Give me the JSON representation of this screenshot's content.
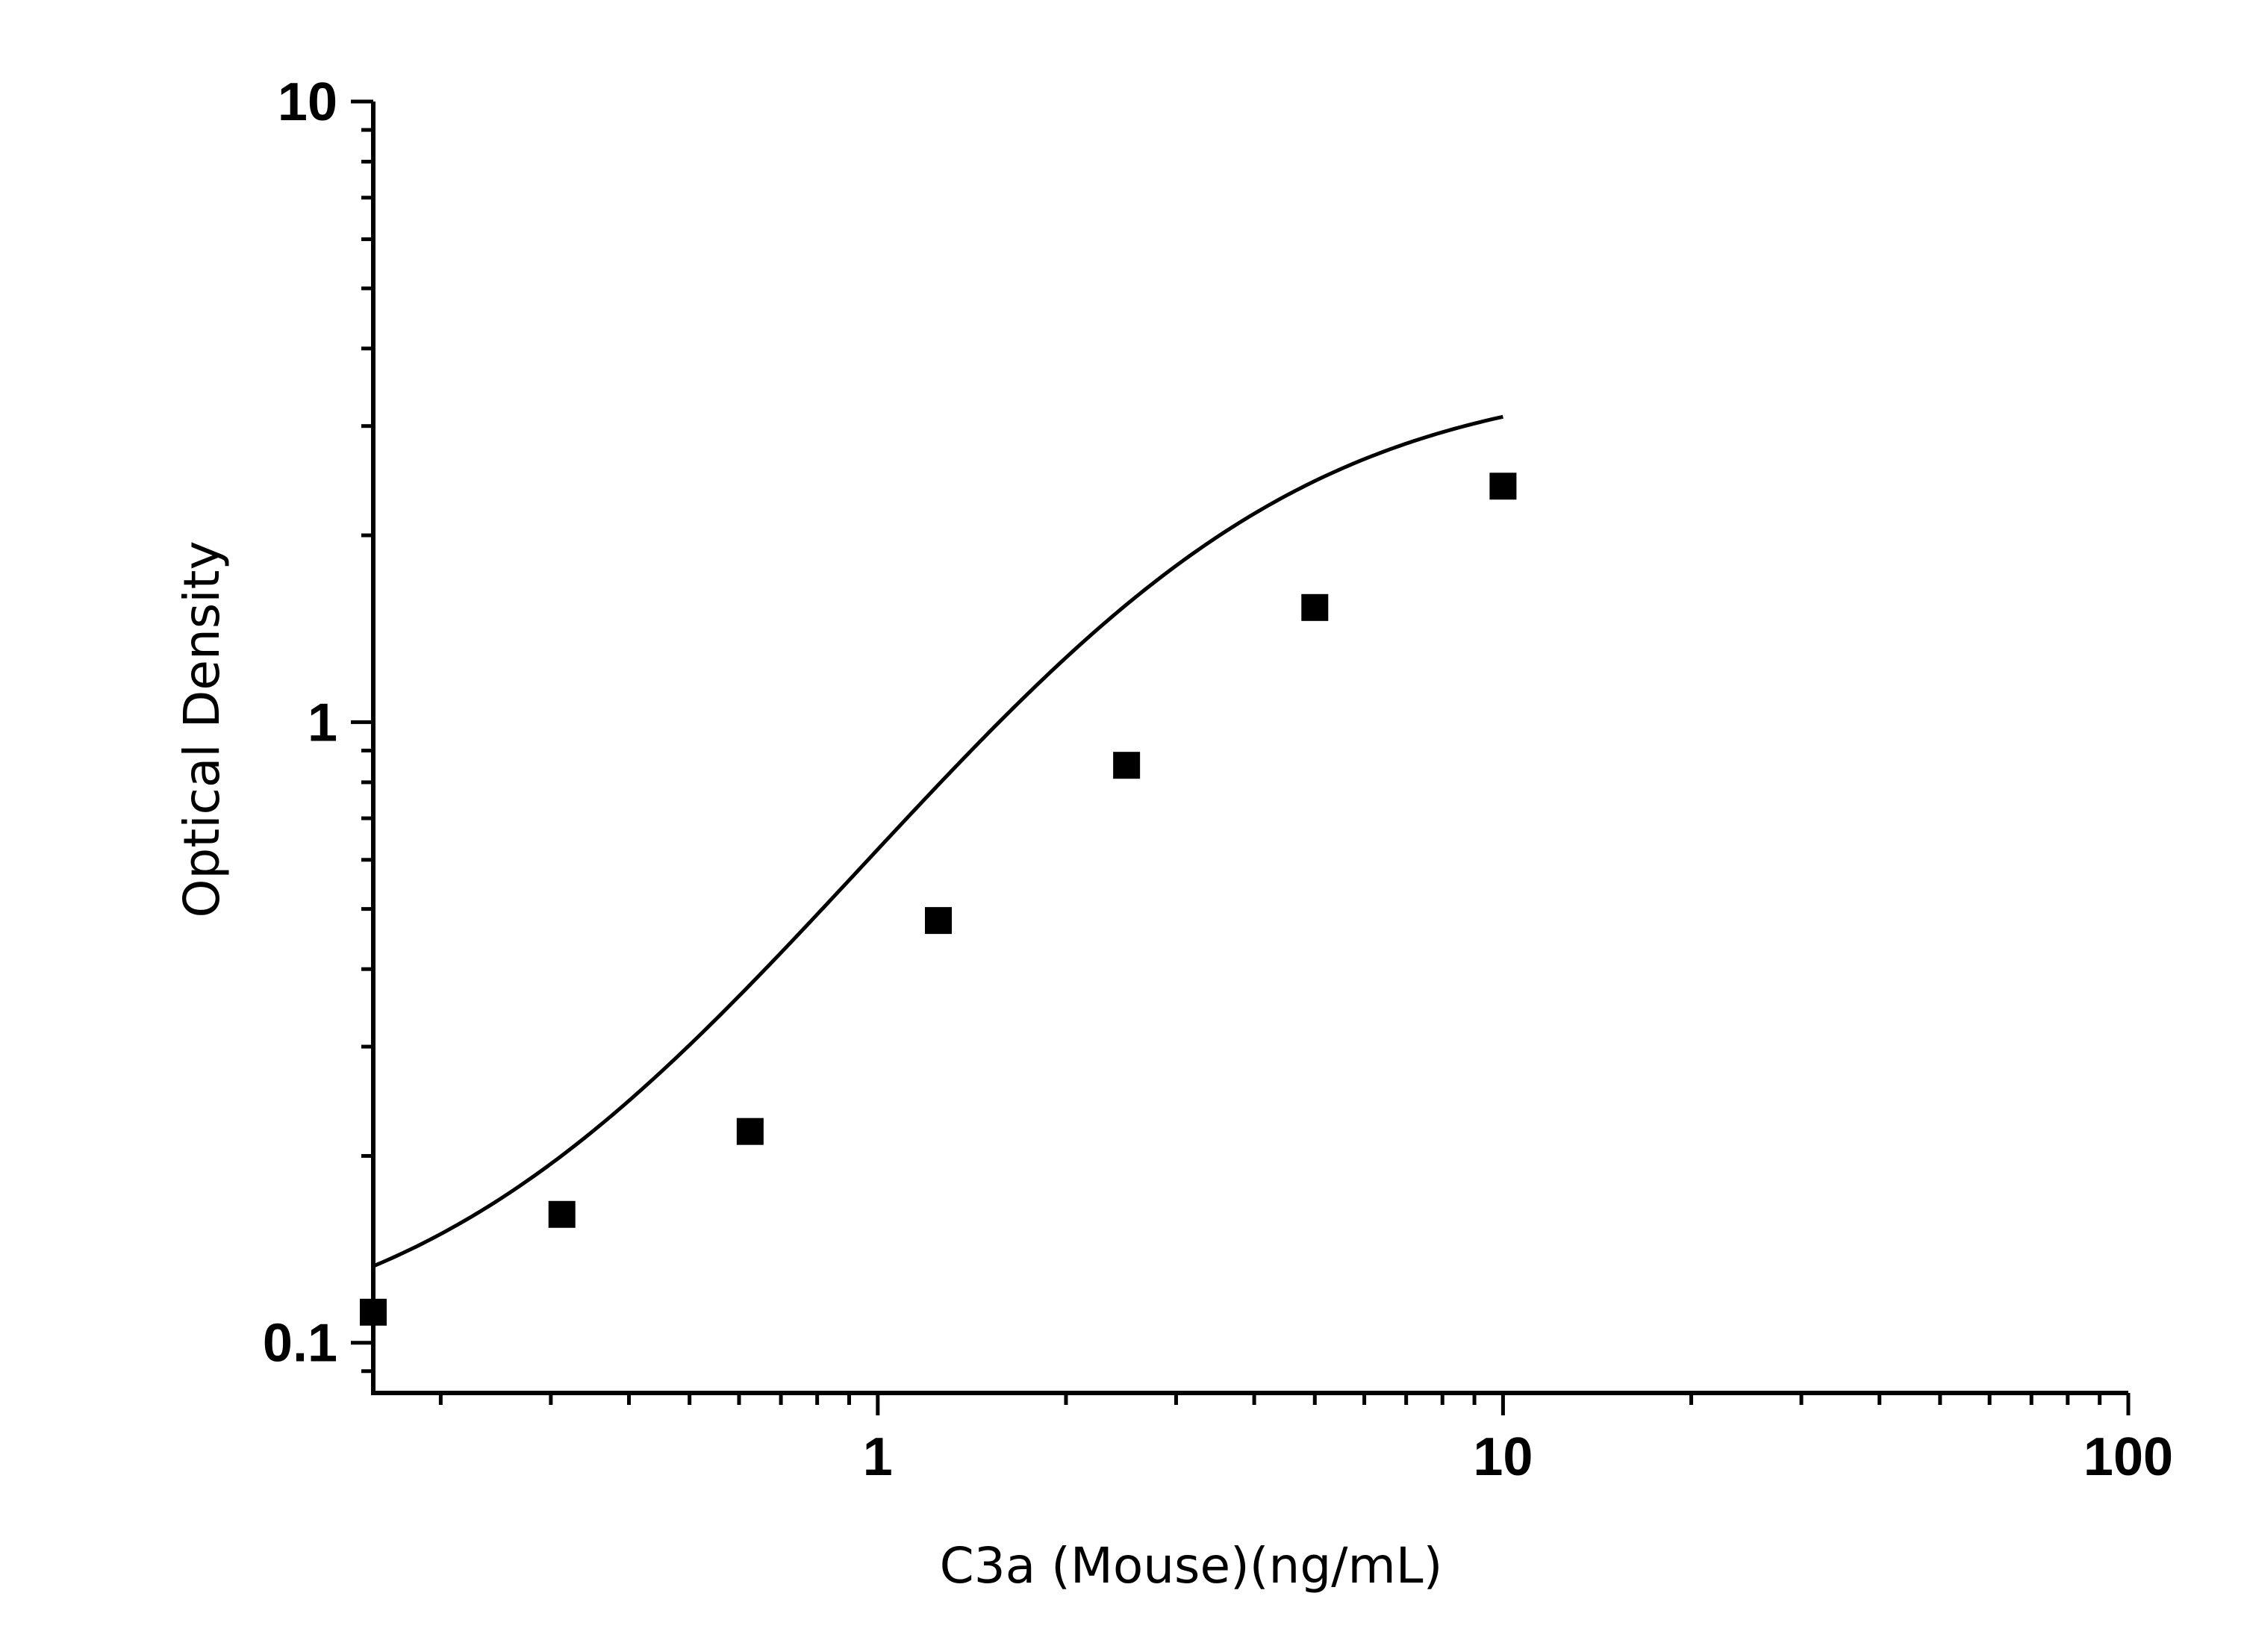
{
  "chart_data": {
    "type": "scatter",
    "title": "",
    "xlabel": "C3a (Mouse)(ng/mL)",
    "ylabel": "Optical Density",
    "x_scale": "log",
    "y_scale": "log",
    "xlim": [
      0.156,
      100
    ],
    "ylim": [
      0.083,
      10
    ],
    "x_ticks": [
      {
        "value": 1,
        "label": "1"
      },
      {
        "value": 10,
        "label": "10"
      },
      {
        "value": 100,
        "label": "100"
      }
    ],
    "y_ticks": [
      {
        "value": 0.1,
        "label": "0.1"
      },
      {
        "value": 1,
        "label": "1"
      },
      {
        "value": 10,
        "label": "10"
      }
    ],
    "grid": false,
    "series": [
      {
        "marker": "square",
        "x": [
          0.156,
          0.3125,
          0.625,
          1.25,
          2.5,
          5,
          10
        ],
        "y": [
          0.112,
          0.161,
          0.219,
          0.479,
          0.852,
          1.53,
          2.4
        ]
      }
    ],
    "fit": {
      "type": "4PL",
      "A": 0.095,
      "B": 1.5,
      "C": 3.2,
      "D": 3.65,
      "x_range": [
        0.156,
        10
      ]
    },
    "colors": {
      "axes": "#000000",
      "points": "#000000",
      "curve": "#000000"
    }
  }
}
